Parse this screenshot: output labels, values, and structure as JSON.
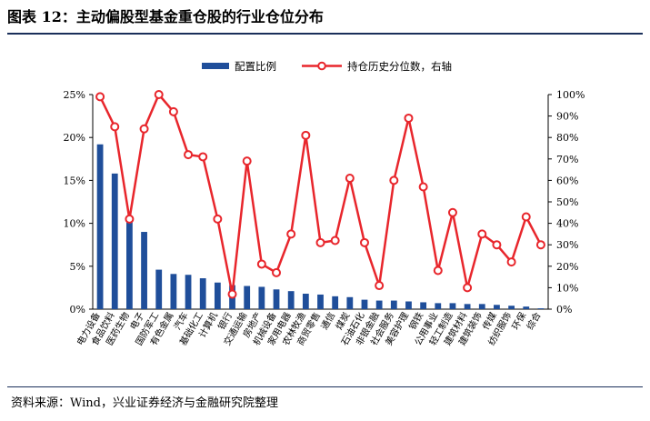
{
  "header": {
    "title": "图表 12：主动偏股型基金重仓股的行业仓位分布"
  },
  "footer": {
    "source": "资料来源：Wind，兴业证券经济与金融研究院整理"
  },
  "colors": {
    "bar": "#1f4e9a",
    "line": "#e8262c",
    "marker_fill": "#ffffff",
    "rule": "#1a2f5a"
  },
  "chart_data": {
    "type": "bar",
    "categories": [
      "电力设备",
      "食品饮料",
      "医药生物",
      "电子",
      "国防军工",
      "有色金属",
      "汽车",
      "基础化工",
      "计算机",
      "银行",
      "交通运输",
      "房地产",
      "机械设备",
      "家用电器",
      "农林牧渔",
      "商贸零售",
      "通信",
      "煤炭",
      "石油石化",
      "非银金融",
      "社会服务",
      "美容护理",
      "钢铁",
      "公用事业",
      "轻工制造",
      "建筑材料",
      "建筑装饰",
      "传媒",
      "纺织服饰",
      "环保",
      "综合"
    ],
    "series": [
      {
        "name": "配置比例",
        "type": "bar",
        "axis": "left",
        "values": [
          19.2,
          15.8,
          10.5,
          9.0,
          4.6,
          4.1,
          4.0,
          3.6,
          3.1,
          2.8,
          2.7,
          2.6,
          2.3,
          2.1,
          1.8,
          1.7,
          1.5,
          1.4,
          1.1,
          1.0,
          1.0,
          0.9,
          0.8,
          0.7,
          0.7,
          0.6,
          0.6,
          0.5,
          0.4,
          0.3,
          0.1
        ]
      },
      {
        "name": "持仓历史分位数，右轴",
        "type": "line",
        "axis": "right",
        "values": [
          99,
          85,
          42,
          84,
          100,
          92,
          72,
          71,
          42,
          7,
          69,
          21,
          17,
          35,
          81,
          31,
          32,
          61,
          31,
          11,
          60,
          89,
          57,
          18,
          45,
          10,
          35,
          30,
          22,
          43,
          30
        ]
      }
    ],
    "y_left": {
      "min": 0,
      "max": 25,
      "step": 5,
      "tick_labels": [
        "0%",
        "5%",
        "10%",
        "15%",
        "20%",
        "25%"
      ]
    },
    "y_right": {
      "min": 0,
      "max": 100,
      "step": 10,
      "tick_labels": [
        "0%",
        "10%",
        "20%",
        "30%",
        "40%",
        "50%",
        "60%",
        "70%",
        "80%",
        "90%",
        "100%"
      ]
    },
    "legend": [
      "配置比例",
      "持仓历史分位数，右轴"
    ],
    "legend_position": "top",
    "grid": false
  }
}
